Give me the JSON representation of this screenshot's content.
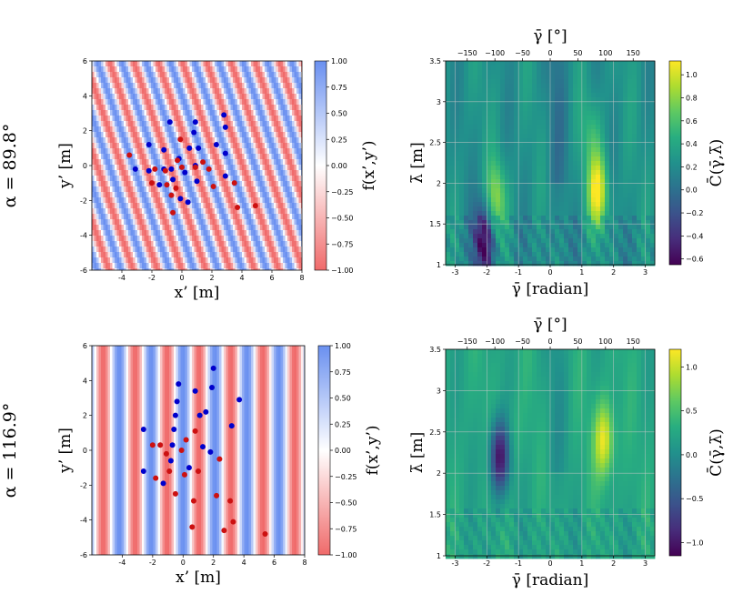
{
  "rows": [
    {
      "label": "α = 89.8°"
    },
    {
      "label": "α = 116.9°"
    }
  ],
  "colors": {
    "pos_point": "#0000cc",
    "neg_point": "#cc1111",
    "grid": "#c8c8c8"
  },
  "chart_data": [
    {
      "type": "scatter",
      "panel": "field-top",
      "xlabel": "x’ [m]",
      "ylabel": "y’ [m]",
      "xlim": [
        -6,
        8
      ],
      "ylim": [
        -6,
        6
      ],
      "xticks": [
        "-4",
        "-2",
        "0",
        "2",
        "4",
        "6",
        "8"
      ],
      "yticks": [
        "-6",
        "-4",
        "-2",
        "0",
        "2",
        "4",
        "6"
      ],
      "background": {
        "type": "stripes",
        "wavelength": 1.5,
        "direction_deg": 22
      },
      "colorbar": {
        "label": "f(x’,y’)",
        "ticks": [
          "1.00",
          "0.75",
          "0.50",
          "0.25",
          "0.00",
          "−0.25",
          "−0.50",
          "−0.75",
          "−1.00"
        ]
      },
      "series": [
        {
          "name": "blue",
          "points": [
            [
              -3.1,
              -0.2
            ],
            [
              -2.2,
              -0.3
            ],
            [
              -2.2,
              1.2
            ],
            [
              -1.5,
              -1.1
            ],
            [
              -1.2,
              -0.2
            ],
            [
              -1.2,
              0.9
            ],
            [
              -0.8,
              2.5
            ],
            [
              -0.7,
              -0.2
            ],
            [
              -0.6,
              -0.8
            ],
            [
              -0.2,
              0.4
            ],
            [
              -0.1,
              -1.9
            ],
            [
              0.2,
              -0.4
            ],
            [
              0.4,
              -2.1
            ],
            [
              0.5,
              1.0
            ],
            [
              0.8,
              1.9
            ],
            [
              0.9,
              0.0
            ],
            [
              0.9,
              2.5
            ],
            [
              1.0,
              -0.9
            ],
            [
              1.1,
              1.0
            ],
            [
              2.3,
              1.2
            ],
            [
              2.8,
              2.9
            ],
            [
              2.9,
              2.2
            ],
            [
              2.9,
              0.7
            ],
            [
              2.9,
              -0.6
            ]
          ]
        },
        {
          "name": "red",
          "points": [
            [
              -3.5,
              0.6
            ],
            [
              -2.0,
              -1.0
            ],
            [
              -1.8,
              -0.2
            ],
            [
              -1.1,
              -0.3
            ],
            [
              -1.0,
              -1.1
            ],
            [
              -0.7,
              -1.7
            ],
            [
              -0.6,
              -2.7
            ],
            [
              -0.4,
              -1.3
            ],
            [
              -0.3,
              0.3
            ],
            [
              -0.1,
              1.5
            ],
            [
              0.0,
              -0.1
            ],
            [
              0.9,
              -0.1
            ],
            [
              1.4,
              0.2
            ],
            [
              1.8,
              -0.2
            ],
            [
              2.1,
              -1.2
            ],
            [
              3.5,
              -1.0
            ],
            [
              3.7,
              -2.4
            ],
            [
              4.9,
              -2.3
            ]
          ]
        }
      ]
    },
    {
      "type": "heatmap",
      "panel": "corr-top",
      "xlabel": "γ̄ [radian]",
      "x2label": "γ̄ [°]",
      "ylabel": "λ̄ [m]",
      "xlim": [
        -3.3,
        3.3
      ],
      "ylim": [
        1,
        3.5
      ],
      "xticks": [
        "-3",
        "-2",
        "-1",
        "0",
        "1",
        "2",
        "3"
      ],
      "x2ticks": [
        "−150",
        "−100",
        "−50",
        "0",
        "50",
        "100",
        "150"
      ],
      "yticks": [
        "1",
        "1.5",
        "2",
        "2.5",
        "3",
        "3.5"
      ],
      "colorbar": {
        "label": "C̄(γ̄,λ̄)",
        "min": -0.65,
        "max": 1.12,
        "ticks": [
          "1.0",
          "0.8",
          "0.6",
          "0.4",
          "0.2",
          "0.0",
          "−0.2",
          "−0.4",
          "−0.6"
        ]
      },
      "peaks": [
        {
          "gamma": 1.5,
          "lambda": 1.9,
          "value": 1.1
        },
        {
          "gamma": -1.7,
          "lambda": 1.8,
          "value": 0.8
        },
        {
          "gamma": 1.3,
          "lambda": 2.6,
          "value": 0.5
        },
        {
          "gamma": -2.1,
          "lambda": 1.3,
          "value": -0.6
        }
      ]
    },
    {
      "type": "scatter",
      "panel": "field-bottom",
      "xlabel": "x’ [m]",
      "ylabel": "y’ [m]",
      "xlim": [
        -6,
        8
      ],
      "ylim": [
        -6,
        6
      ],
      "xticks": [
        "-4",
        "-2",
        "0",
        "2",
        "4",
        "6",
        "8"
      ],
      "yticks": [
        "-6",
        "-4",
        "-2",
        "0",
        "2",
        "4",
        "6"
      ],
      "background": {
        "type": "stripes",
        "wavelength": 2.1,
        "direction_deg": 0
      },
      "colorbar": {
        "label": "f(x’,y’)",
        "ticks": [
          "1.00",
          "0.75",
          "0.50",
          "0.25",
          "0.00",
          "−0.25",
          "−0.50",
          "−0.75",
          "−1.00"
        ]
      },
      "series": [
        {
          "name": "blue",
          "points": [
            [
              -2.6,
              1.2
            ],
            [
              -2.6,
              -1.2
            ],
            [
              -1.3,
              -1.9
            ],
            [
              -0.8,
              -0.6
            ],
            [
              -0.7,
              0.3
            ],
            [
              -0.6,
              1.2
            ],
            [
              -0.5,
              2.0
            ],
            [
              -0.4,
              2.8
            ],
            [
              -0.3,
              3.8
            ],
            [
              0.4,
              -1.0
            ],
            [
              0.8,
              3.4
            ],
            [
              1.1,
              2.0
            ],
            [
              1.3,
              0.2
            ],
            [
              1.5,
              2.2
            ],
            [
              1.8,
              -0.1
            ],
            [
              1.9,
              3.6
            ],
            [
              2.0,
              4.7
            ],
            [
              3.2,
              1.4
            ],
            [
              3.7,
              2.9
            ]
          ]
        },
        {
          "name": "red",
          "points": [
            [
              -2.0,
              0.3
            ],
            [
              -1.8,
              -1.6
            ],
            [
              -1.5,
              0.3
            ],
            [
              -1.1,
              -0.2
            ],
            [
              -0.9,
              -1.2
            ],
            [
              -0.5,
              -2.5
            ],
            [
              -0.1,
              0.0
            ],
            [
              0.1,
              -1.4
            ],
            [
              0.2,
              0.6
            ],
            [
              0.6,
              -4.4
            ],
            [
              0.7,
              -2.9
            ],
            [
              0.8,
              1.1
            ],
            [
              1.0,
              -1.2
            ],
            [
              2.2,
              -2.6
            ],
            [
              2.4,
              -0.5
            ],
            [
              2.7,
              -4.6
            ],
            [
              3.1,
              -2.9
            ],
            [
              3.3,
              -4.1
            ],
            [
              5.4,
              -4.8
            ]
          ]
        }
      ]
    },
    {
      "type": "heatmap",
      "panel": "corr-bottom",
      "xlabel": "γ̄ [radian]",
      "x2label": "γ̄ [°]",
      "ylabel": "λ̄ [m]",
      "xlim": [
        -3.3,
        3.3
      ],
      "ylim": [
        1,
        3.5
      ],
      "xticks": [
        "-3",
        "-2",
        "-1",
        "0",
        "1",
        "2",
        "3"
      ],
      "x2ticks": [
        "−150",
        "−100",
        "−50",
        "0",
        "50",
        "100",
        "150"
      ],
      "yticks": [
        "1",
        "1.5",
        "2",
        "2.5",
        "3",
        "3.5"
      ],
      "colorbar": {
        "label": "C̄(γ̄,λ̄)",
        "min": -1.15,
        "max": 1.2,
        "ticks": [
          "1.0",
          "0.5",
          "0.0",
          "−0.5",
          "−1.0"
        ]
      },
      "peaks": [
        {
          "gamma": 1.7,
          "lambda": 2.4,
          "value": 1.15
        },
        {
          "gamma": -1.6,
          "lambda": 2.2,
          "value": -1.05
        },
        {
          "gamma": -1.2,
          "lambda": 2.5,
          "value": 0.4
        }
      ]
    }
  ]
}
